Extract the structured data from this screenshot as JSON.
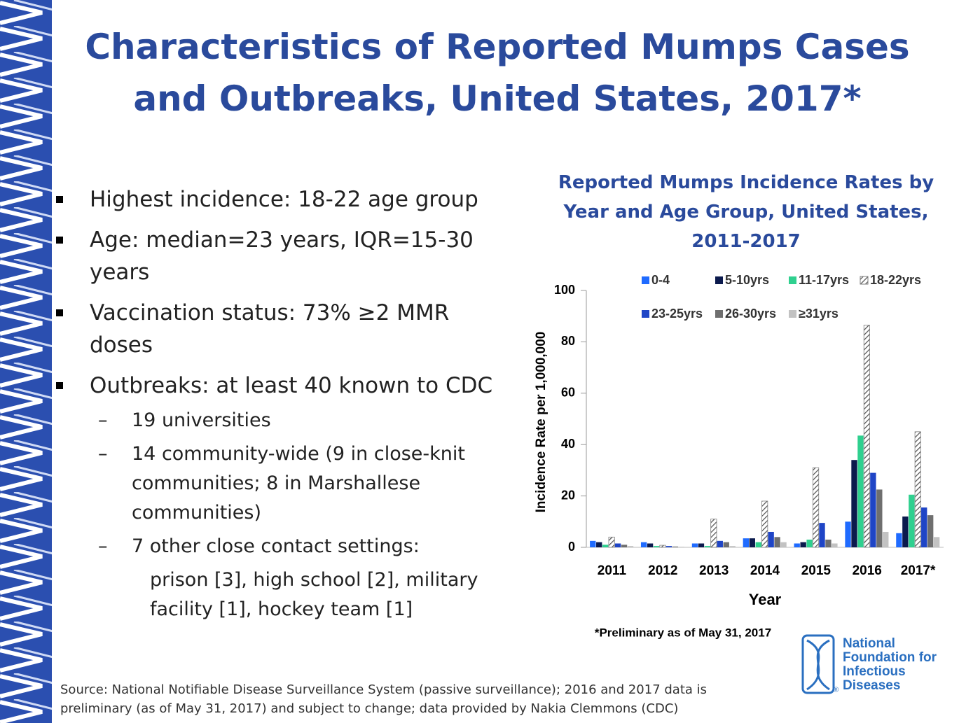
{
  "title": "Characteristics of Reported Mumps Cases and Outbreaks, United States, 2017*",
  "bullets": [
    {
      "text": "Highest incidence: 18-22 age group"
    },
    {
      "text": "Age: median=23 years, IQR=15-30 years"
    },
    {
      "text": "Vaccination status: 73% ≥2 MMR doses"
    },
    {
      "text": "Outbreaks: at least 40 known to CDC",
      "sub": [
        {
          "text": "19 universities"
        },
        {
          "text": "14 community-wide (9 in close-knit communities; 8 in Marshallese communities)"
        },
        {
          "text": "7 other close contact settings:",
          "detail": "prison [3], high school [2], military facility [1], hockey team [1]"
        }
      ]
    }
  ],
  "chart_data": {
    "type": "bar",
    "title": "Reported Mumps Incidence Rates by Year and Age Group, United States, 2011-2017",
    "x_label": "Year",
    "y_label": "Incidence Rate per 1,000,000",
    "footnote": "*Preliminary as of May 31, 2017",
    "categories": [
      "2011",
      "2012",
      "2013",
      "2014",
      "2015",
      "2016",
      "2017*"
    ],
    "ylim": [
      0,
      100
    ],
    "yticks": [
      0,
      20,
      40,
      60,
      80,
      100
    ],
    "series": [
      {
        "name": "0-4",
        "color": "#1f6bff",
        "values": [
          2.5,
          2,
          1.5,
          3.5,
          1.5,
          10,
          5.5
        ]
      },
      {
        "name": "5-10yrs",
        "color": "#0b1a4d",
        "values": [
          2,
          1.5,
          1.5,
          3.5,
          2,
          34,
          12
        ]
      },
      {
        "name": "11-17yrs",
        "color": "#2fd08f",
        "values": [
          1,
          0.5,
          0.5,
          2,
          3,
          43.5,
          20.5
        ]
      },
      {
        "name": "18-22yrs",
        "color": "#7f7f7f",
        "hatch": true,
        "values": [
          4,
          0.8,
          11,
          18,
          31,
          86.5,
          45
        ]
      },
      {
        "name": "23-25yrs",
        "color": "#1f45c6",
        "values": [
          1.5,
          0.5,
          2.5,
          6,
          9.5,
          29,
          15.5
        ]
      },
      {
        "name": "26-30yrs",
        "color": "#6f6f6f",
        "values": [
          1,
          0.3,
          2,
          4,
          3,
          22.5,
          12.5
        ]
      },
      {
        "name": "≥31yrs",
        "color": "#c2c2c2",
        "values": [
          0.5,
          0.2,
          0.5,
          2,
          1.5,
          6,
          4
        ]
      }
    ]
  },
  "logo": {
    "lines": [
      "National",
      "Foundation for",
      "Infectious",
      "Diseases"
    ],
    "registered": "®"
  },
  "source": "Source: National Notifiable Disease Surveillance System (passive surveillance); 2016 and 2017 data is preliminary (as of May 31, 2017) and subject to change; data provided by Nakia Clemmons (CDC)"
}
